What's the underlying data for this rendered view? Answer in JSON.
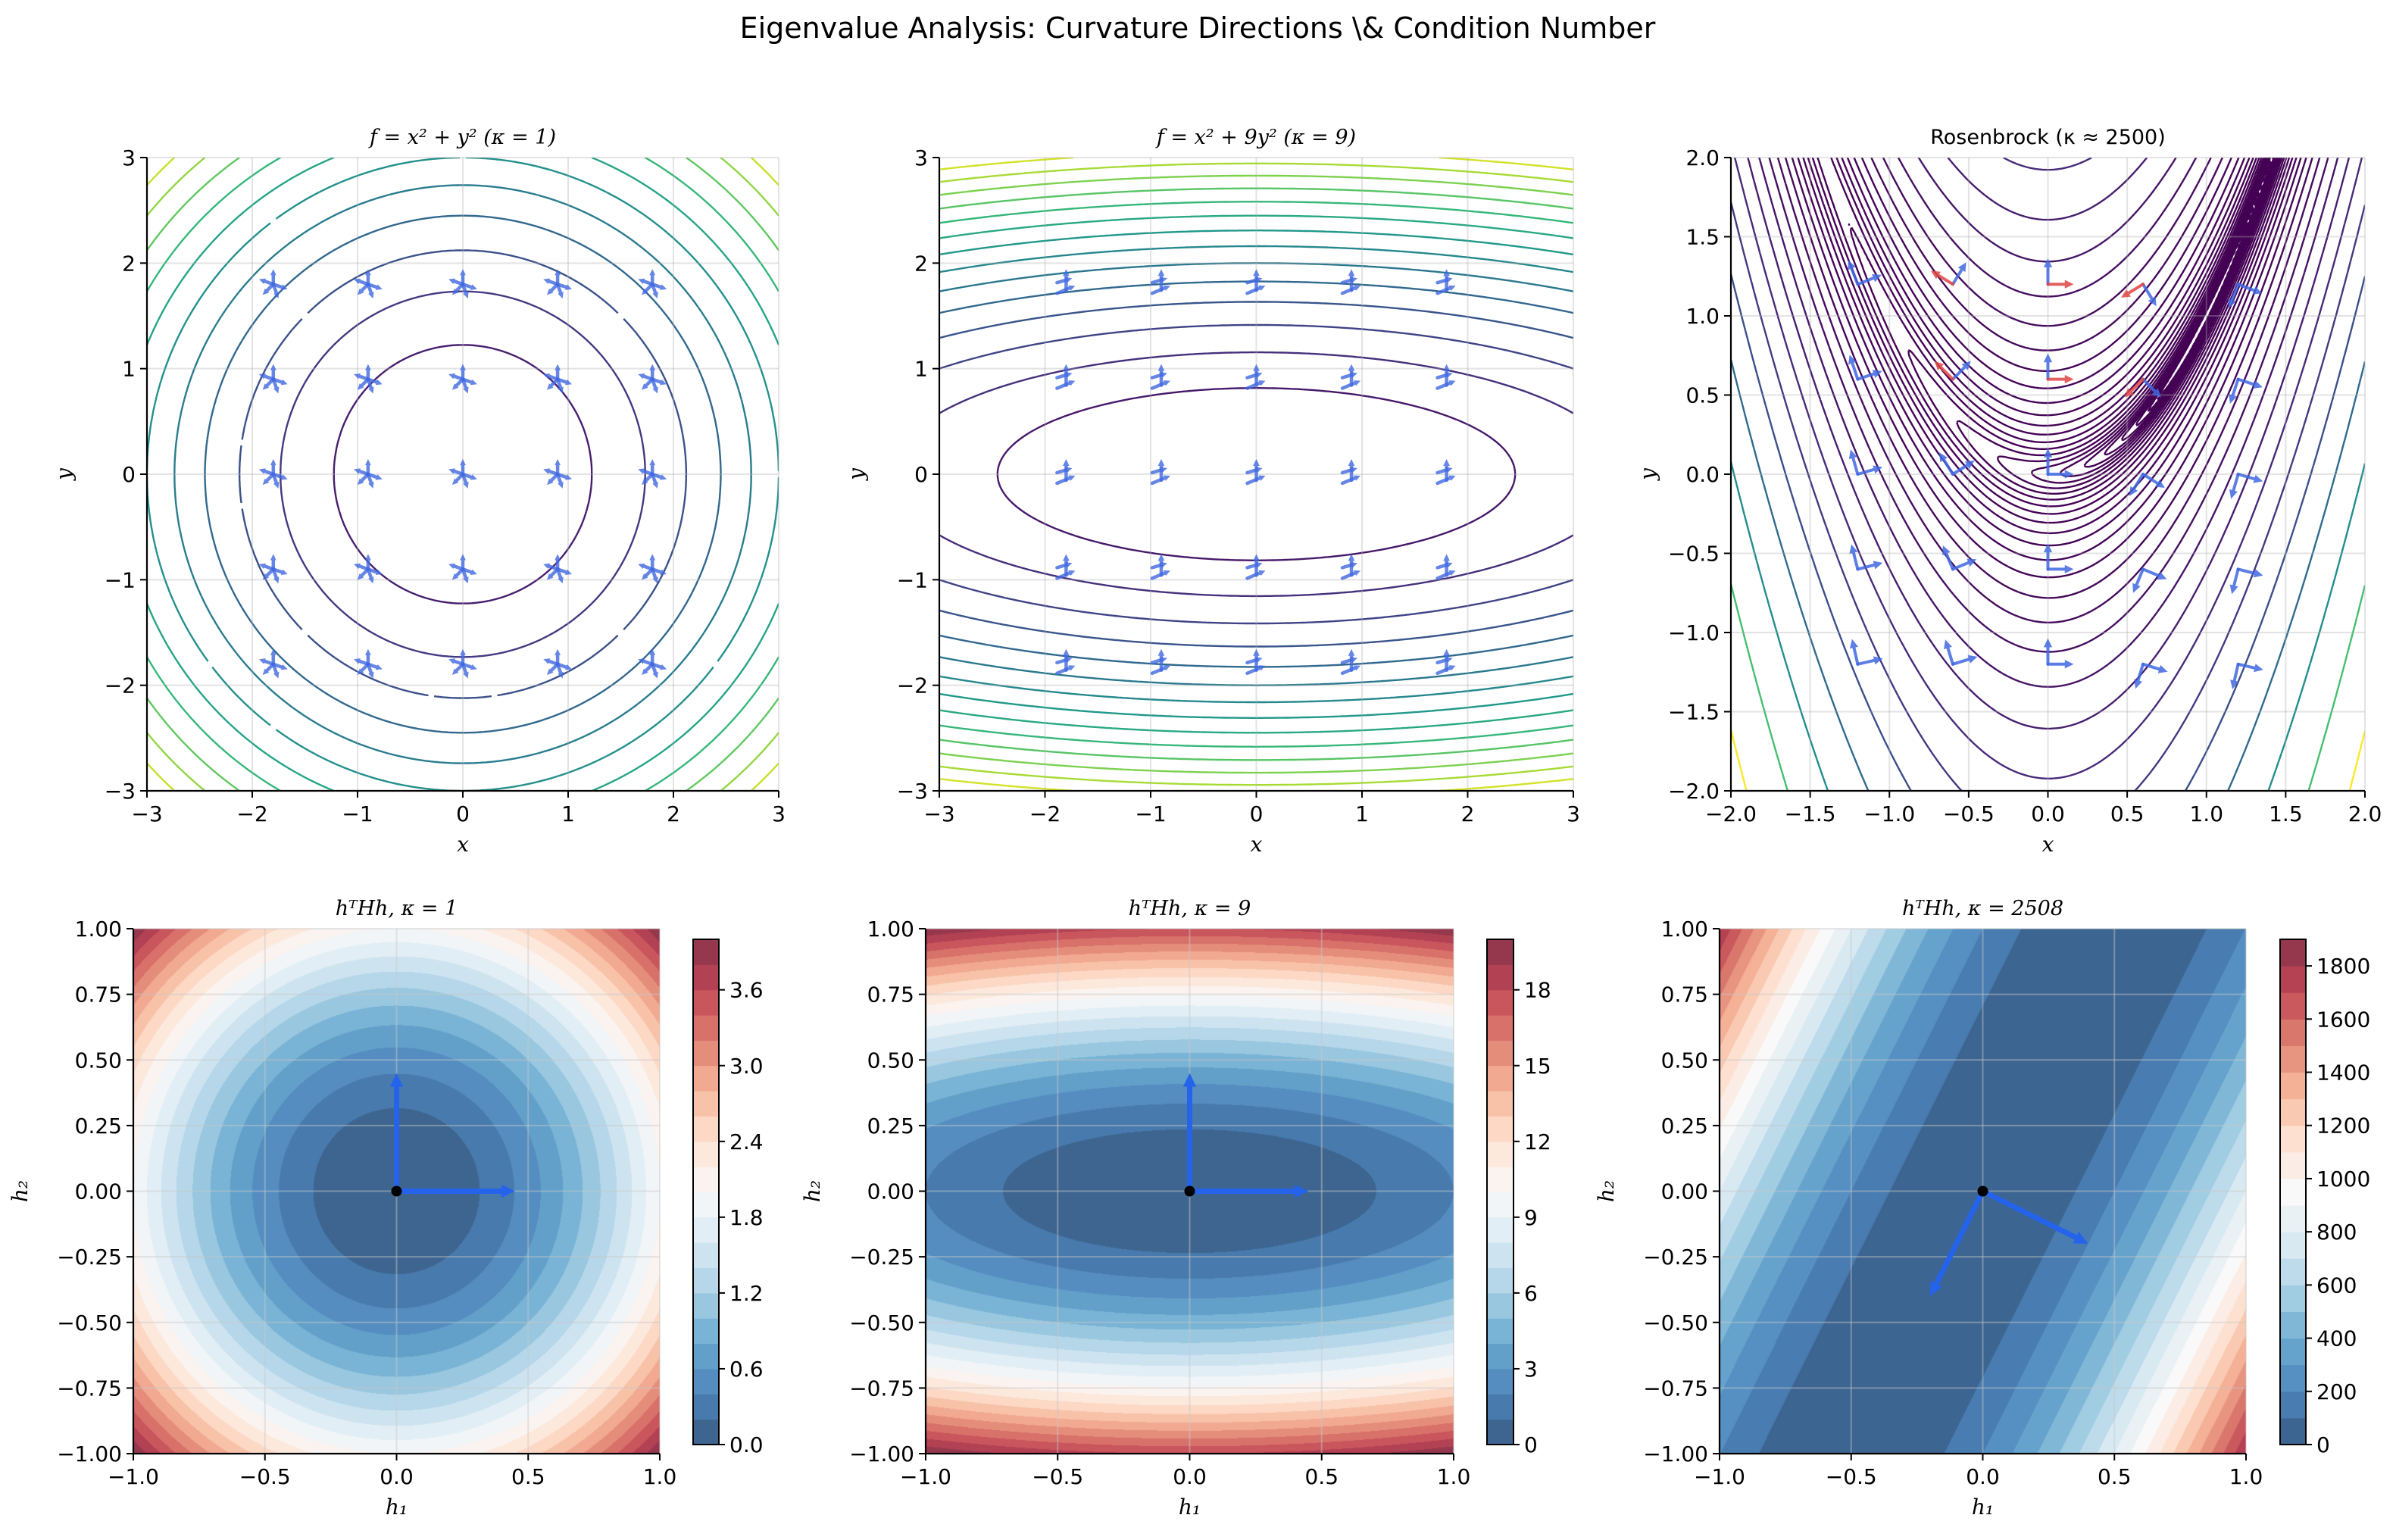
{
  "figure": {
    "title": "Eigenvalue Analysis: Curvature Directions \\& Condition Number"
  },
  "colors": {
    "positive_eigen_arrow": "#4169e1",
    "negative_eigen_arrow": "#e04545",
    "principal_arrow": "#2563eb",
    "grid": "#d0d0d0",
    "top_colormap": "viridis",
    "bottom_colormap": "RdBu_r"
  },
  "chart_data": [
    {
      "type": "contour",
      "title": "f = x² + y² (κ = 1)",
      "title_style": "math",
      "xlabel": "x",
      "ylabel": "y",
      "xlim": [
        -3,
        3
      ],
      "ylim": [
        -3,
        3
      ],
      "xticks": [
        -3,
        -2,
        -1,
        0,
        1,
        2,
        3
      ],
      "xtick_labels": [
        "−3",
        "−2",
        "−1",
        "0",
        "1",
        "2",
        "3"
      ],
      "yticks": [
        -3,
        -2,
        -1,
        0,
        1,
        2,
        3
      ],
      "ytick_labels": [
        "−3",
        "−2",
        "−1",
        "0",
        "1",
        "2",
        "3"
      ],
      "levels": [
        1.5,
        3,
        4.5,
        6,
        7.5,
        9,
        10.5,
        12,
        13.5,
        15,
        16.5
      ],
      "color_range": [
        0,
        18
      ],
      "colormap": "viridis",
      "grid": true,
      "eigen_points": {
        "x": [
          -1.8,
          -0.9,
          0,
          0.9,
          1.8
        ],
        "y": [
          -1.8,
          -0.9,
          0,
          0.9,
          1.8
        ]
      },
      "hessian": [
        [
          2,
          0
        ],
        [
          0,
          2
        ]
      ]
    },
    {
      "type": "contour",
      "title": "f = x² + 9y² (κ = 9)",
      "title_style": "math",
      "xlabel": "x",
      "ylabel": "y",
      "xlim": [
        -3,
        3
      ],
      "ylim": [
        -3,
        3
      ],
      "xticks": [
        -3,
        -2,
        -1,
        0,
        1,
        2,
        3
      ],
      "xtick_labels": [
        "−3",
        "−2",
        "−1",
        "0",
        "1",
        "2",
        "3"
      ],
      "yticks": [
        -3,
        -2,
        -1,
        0,
        1,
        2,
        3
      ],
      "ytick_labels": [
        "−3",
        "−2",
        "−1",
        "0",
        "1",
        "2",
        "3"
      ],
      "levels": [
        6,
        12,
        18,
        24,
        30,
        36,
        42,
        48,
        54,
        60,
        66,
        72,
        78,
        84
      ],
      "color_range": [
        0,
        90
      ],
      "colormap": "viridis",
      "grid": true,
      "eigen_points": {
        "x": [
          -1.8,
          -0.9,
          0,
          0.9,
          1.8
        ],
        "y": [
          -1.8,
          -0.9,
          0,
          0.9,
          1.8
        ]
      },
      "hessian": [
        [
          2,
          0
        ],
        [
          0,
          18
        ]
      ]
    },
    {
      "type": "contour",
      "title": "Rosenbrock (κ ≈ 2500)",
      "title_style": "plain",
      "xlabel": "x",
      "ylabel": "y",
      "xlim": [
        -2,
        2
      ],
      "ylim": [
        -2,
        2
      ],
      "xticks": [
        -2,
        -1.5,
        -1,
        -0.5,
        0,
        0.5,
        1,
        1.5,
        2
      ],
      "xtick_labels": [
        "−2.0",
        "−1.5",
        "−1.0",
        "−0.5",
        "0.0",
        "0.5",
        "1.0",
        "1.5",
        "2.0"
      ],
      "yticks": [
        -2,
        -1.5,
        -1,
        -0.5,
        0,
        0.5,
        1,
        1.5,
        2
      ],
      "ytick_labels": [
        "−2.0",
        "−1.5",
        "−1.0",
        "−0.5",
        "0.0",
        "0.5",
        "1.0",
        "1.5",
        "2.0"
      ],
      "levels": {
        "scale": "log",
        "min": 0.1,
        "max": 3162,
        "count": 30
      },
      "colormap": "viridis",
      "grid": true,
      "eigen_points": {
        "x": [
          -1.2,
          -0.6,
          0,
          0.6,
          1.2
        ],
        "y": [
          -1.2,
          -0.6,
          0,
          0.6,
          1.2
        ]
      }
    },
    {
      "type": "filled-contour",
      "title": "hᵀHh, κ = 1",
      "xlabel": "h₁",
      "ylabel": "h₂",
      "xlim": [
        -1,
        1
      ],
      "ylim": [
        -1,
        1
      ],
      "xticks": [
        -1,
        -0.5,
        0,
        0.5,
        1
      ],
      "xtick_labels": [
        "−1.0",
        "−0.5",
        "0.0",
        "0.5",
        "1.0"
      ],
      "yticks": [
        -1,
        -0.75,
        -0.5,
        -0.25,
        0,
        0.25,
        0.5,
        0.75,
        1
      ],
      "ytick_labels": [
        "−1.00",
        "−0.75",
        "−0.50",
        "−0.25",
        "0.00",
        "0.25",
        "0.50",
        "0.75",
        "1.00"
      ],
      "hessian": [
        [
          2,
          0
        ],
        [
          0,
          2
        ]
      ],
      "levels": {
        "min": 0,
        "max": 4,
        "step": 0.2
      },
      "colormap": "RdBu_r",
      "grid": true,
      "colorbar": {
        "ticks": [
          0,
          0.6,
          1.2,
          1.8,
          2.4,
          3.0,
          3.6
        ],
        "tick_labels": [
          "0.0",
          "0.6",
          "1.2",
          "1.8",
          "2.4",
          "3.0",
          "3.6"
        ]
      },
      "eigenvectors": [
        [
          0,
          0.45
        ],
        [
          0.45,
          0
        ]
      ]
    },
    {
      "type": "filled-contour",
      "title": "hᵀHh, κ = 9",
      "xlabel": "h₁",
      "ylabel": "h₂",
      "xlim": [
        -1,
        1
      ],
      "ylim": [
        -1,
        1
      ],
      "xticks": [
        -1,
        -0.5,
        0,
        0.5,
        1
      ],
      "xtick_labels": [
        "−1.0",
        "−0.5",
        "0.0",
        "0.5",
        "1.0"
      ],
      "yticks": [
        -1,
        -0.75,
        -0.5,
        -0.25,
        0,
        0.25,
        0.5,
        0.75,
        1
      ],
      "ytick_labels": [
        "−1.00",
        "−0.75",
        "−0.50",
        "−0.25",
        "0.00",
        "0.25",
        "0.50",
        "0.75",
        "1.00"
      ],
      "hessian": [
        [
          2,
          0
        ],
        [
          0,
          18
        ]
      ],
      "levels": {
        "min": 0,
        "max": 20,
        "step": 1
      },
      "colormap": "RdBu_r",
      "grid": true,
      "colorbar": {
        "ticks": [
          0,
          3,
          6,
          9,
          12,
          15,
          18
        ],
        "tick_labels": [
          "0",
          "3",
          "6",
          "9",
          "12",
          "15",
          "18"
        ]
      },
      "eigenvectors": [
        [
          0,
          0.45
        ],
        [
          0.45,
          0
        ]
      ]
    },
    {
      "type": "filled-contour",
      "title": "hᵀHh, κ = 2508",
      "xlabel": "h₁",
      "ylabel": "h₂",
      "xlim": [
        -1,
        1
      ],
      "ylim": [
        -1,
        1
      ],
      "xticks": [
        -1,
        -0.5,
        0,
        0.5,
        1
      ],
      "xtick_labels": [
        "−1.0",
        "−0.5",
        "0.0",
        "0.5",
        "1.0"
      ],
      "yticks": [
        -1,
        -0.75,
        -0.5,
        -0.25,
        0,
        0.25,
        0.5,
        0.75,
        1
      ],
      "ytick_labels": [
        "−1.00",
        "−0.75",
        "−0.50",
        "−0.25",
        "0.00",
        "0.25",
        "0.50",
        "0.75",
        "1.00"
      ],
      "hessian": [
        [
          802,
          -400
        ],
        [
          -400,
          200
        ]
      ],
      "levels": {
        "min": 0,
        "max": 1900,
        "step": 100
      },
      "colormap": "RdBu_r",
      "grid": true,
      "colorbar": {
        "ticks": [
          0,
          200,
          400,
          600,
          800,
          1000,
          1200,
          1400,
          1600,
          1800
        ],
        "tick_labels": [
          "0",
          "200",
          "400",
          "600",
          "800",
          "1000",
          "1200",
          "1400",
          "1600",
          "1800"
        ]
      },
      "eigenvectors": [
        [
          0.4,
          -0.2
        ],
        [
          -0.2,
          -0.4
        ]
      ]
    }
  ]
}
